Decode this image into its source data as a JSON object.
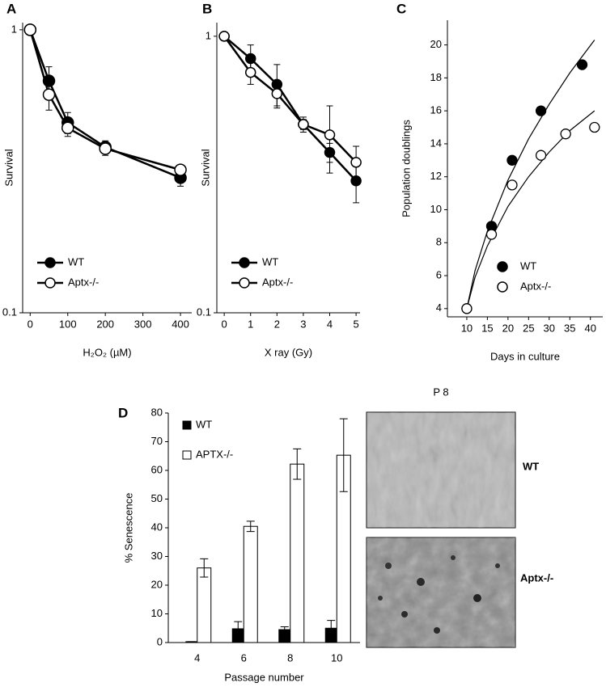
{
  "chart_data": [
    {
      "type": "line",
      "panel": "A",
      "x_label": "H₂O₂ (µM)",
      "y_label": "Survival",
      "log_scale": true,
      "x": [
        0,
        50,
        100,
        200,
        400
      ],
      "xlim": [
        -20,
        430
      ],
      "xticks": [
        0,
        100,
        200,
        300,
        400
      ],
      "ylim": [
        0.1,
        1.06
      ],
      "yticks": [
        0.1,
        1
      ],
      "legend": "lower left",
      "series": [
        {
          "name": "WT",
          "color": "#000000",
          "values": [
            1,
            0.66,
            0.47,
            0.385,
            0.3
          ],
          "errors": [
            0,
            0.08,
            0.04,
            0.02,
            0.02
          ]
        },
        {
          "name": "Aptx-/-",
          "color": "#ffffff",
          "values": [
            1,
            0.59,
            0.45,
            0.38,
            0.32
          ],
          "errors": [
            0,
            0.07,
            0.03,
            0.02,
            0.01
          ]
        }
      ]
    },
    {
      "type": "line",
      "panel": "B",
      "x_label": "X ray (Gy)",
      "y_label": "Survival",
      "log_scale": true,
      "x": [
        0,
        1,
        2,
        3,
        4,
        5
      ],
      "xlim": [
        -0.28,
        5.15
      ],
      "xticks": [
        0,
        1,
        2,
        3,
        4,
        5
      ],
      "ylim": [
        0.1,
        1.12
      ],
      "yticks": [
        0.1,
        1
      ],
      "legend": "lower left",
      "series": [
        {
          "name": "WT",
          "color": "#000000",
          "values": [
            1,
            0.83,
            0.67,
            0.48,
            0.38,
            0.3
          ],
          "errors": [
            0,
            0.1,
            0.12,
            0.02,
            0.03,
            0.05
          ]
        },
        {
          "name": "Aptx-/-",
          "color": "#ffffff",
          "values": [
            1,
            0.74,
            0.62,
            0.48,
            0.44,
            0.35
          ],
          "errors": [
            0,
            0.07,
            0.06,
            0.03,
            0.12,
            0.05
          ]
        }
      ]
    },
    {
      "type": "scatter",
      "panel": "C",
      "x_label": "Days in culture",
      "y_label": "Population doublings",
      "xlim": [
        5.3,
        43
      ],
      "xticks": [
        10,
        15,
        20,
        25,
        30,
        35,
        40
      ],
      "ylim": [
        3.5,
        21.5
      ],
      "yticks": [
        4,
        6,
        8,
        10,
        12,
        14,
        16,
        18,
        20
      ],
      "legend": "lower right",
      "series": [
        {
          "name": "WT",
          "color": "#000000",
          "x": [
            10,
            16,
            21,
            28,
            38
          ],
          "values": [
            4,
            9,
            13,
            16,
            18.8
          ],
          "fit": {
            "x": [
              10,
              12,
              15,
              20,
              25,
              30,
              35,
              41
            ],
            "values": [
              4,
              6.3,
              8.7,
              11.8,
              14.3,
              16.4,
              18.3,
              20.3
            ]
          }
        },
        {
          "name": "Aptx-/-",
          "color": "#ffffff",
          "x": [
            10,
            16,
            21,
            28,
            34,
            41
          ],
          "values": [
            4,
            8.5,
            11.5,
            13.3,
            14.6,
            15
          ],
          "fit": {
            "x": [
              10,
              12,
              15,
              20,
              25,
              30,
              35,
              41
            ],
            "values": [
              4,
              5.9,
              7.8,
              10.2,
              12,
              13.5,
              14.8,
              16
            ]
          }
        }
      ]
    },
    {
      "type": "bar",
      "panel": "D",
      "x_label": "Passage number",
      "y_label": "% Senescence",
      "categories": [
        "4",
        "6",
        "8",
        "10"
      ],
      "ylim": [
        0,
        80
      ],
      "yticks": [
        0,
        10,
        20,
        30,
        40,
        50,
        60,
        70,
        80
      ],
      "legend": "upper left",
      "series": [
        {
          "name": "WT",
          "color": "#000000",
          "values": [
            0.3,
            4.8,
            4.5,
            5
          ],
          "errors": [
            0,
            2.5,
            1,
            2.7
          ]
        },
        {
          "name": "APTX-/-",
          "color": "#ffffff",
          "values": [
            26,
            40.5,
            62.2,
            65.3
          ],
          "errors": [
            3.2,
            1.8,
            5.3,
            12.7
          ]
        }
      ]
    }
  ],
  "micrographs": {
    "title": "P 8",
    "labels": [
      "WT",
      "Aptx-/-"
    ]
  }
}
